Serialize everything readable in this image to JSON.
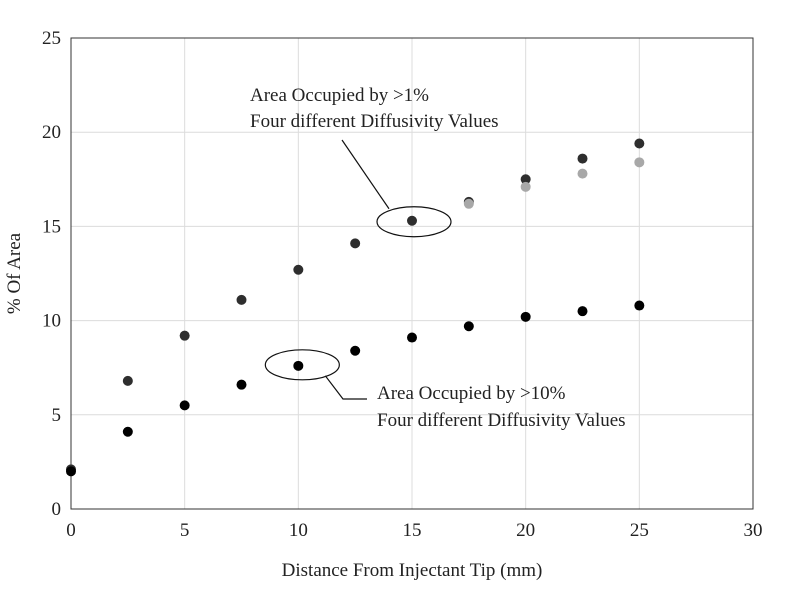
{
  "chart_data": {
    "type": "scatter",
    "title": "",
    "xlabel": "Distance From Injectant Tip (mm)",
    "ylabel": "% Of Area",
    "xlim": [
      0,
      30
    ],
    "ylim": [
      0,
      25
    ],
    "xticks": [
      0,
      5,
      10,
      15,
      20,
      25,
      30
    ],
    "yticks": [
      0,
      5,
      10,
      15,
      20,
      25
    ],
    "grid": true,
    "legend": "none",
    "series": [
      {
        "color": "#2e2e2e",
        "points": [
          [
            0,
            2.1
          ],
          [
            2.5,
            6.8
          ],
          [
            5,
            9.2
          ],
          [
            7.5,
            11.1
          ],
          [
            10,
            12.7
          ],
          [
            12.5,
            14.1
          ],
          [
            15,
            15.3
          ],
          [
            17.5,
            16.3
          ],
          [
            20,
            17.5
          ],
          [
            22.5,
            18.6
          ],
          [
            25,
            19.4
          ]
        ]
      },
      {
        "color": "#a8a8a8",
        "points": [
          [
            17.5,
            16.2
          ],
          [
            20,
            17.1
          ],
          [
            22.5,
            17.8
          ],
          [
            25,
            18.4
          ]
        ]
      },
      {
        "color": "#000000",
        "points": [
          [
            0,
            2.0
          ],
          [
            2.5,
            4.1
          ],
          [
            5,
            5.5
          ],
          [
            7.5,
            6.6
          ],
          [
            10,
            7.6
          ],
          [
            12.5,
            8.4
          ],
          [
            15,
            9.1
          ],
          [
            17.5,
            9.7
          ],
          [
            20,
            10.2
          ],
          [
            22.5,
            10.5
          ],
          [
            25,
            10.8
          ]
        ]
      }
    ],
    "annotations": [
      {
        "lines": [
          "Area Occupied by >1%",
          "Four different Diffusivity Values"
        ],
        "target": [
          15,
          15.3
        ]
      },
      {
        "lines": [
          "Area Occupied by >10%",
          "Four different Diffusivity Values"
        ],
        "target": [
          10,
          7.6
        ]
      }
    ]
  }
}
